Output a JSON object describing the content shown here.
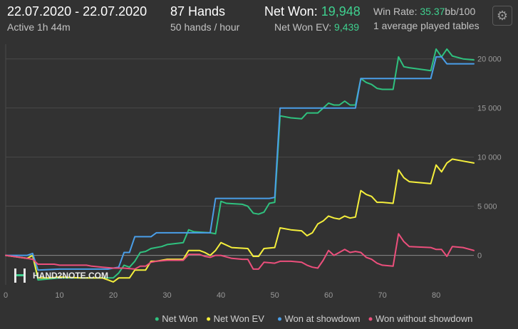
{
  "header": {
    "date_range": "22.07.2020 - 22.07.2020",
    "active": "Active 1h 44m",
    "hands": "87 Hands",
    "hands_rate": "50 hands / hour",
    "net_won_label": "Net Won:",
    "net_won_value": "19,948",
    "net_won_ev_label": "Net Won  EV:",
    "net_won_ev_value": "9,439",
    "win_rate_label": "Win Rate:",
    "win_rate_value": "35.37",
    "win_rate_unit": "bb/100",
    "tables": "1 average played tables"
  },
  "watermark": {
    "text": "HAND2NOTE.COM"
  },
  "colors": {
    "background": "#323232",
    "grid": "#4a4a4a",
    "zero_line": "#8a8a8a",
    "accent_green": "#3fd08f"
  },
  "icons": {
    "settings": "gear-icon",
    "logo": "h2n-logo-icon"
  },
  "chart_data": {
    "type": "line",
    "xlim": [
      0,
      87
    ],
    "ylim": [
      -3000,
      21500
    ],
    "x_ticks": [
      0,
      10,
      20,
      30,
      40,
      50,
      60,
      70,
      80
    ],
    "y_ticks": [
      0,
      5000,
      10000,
      15000,
      20000
    ],
    "y_tick_labels": [
      "0",
      "5 000",
      "10 000",
      "15 000",
      "20 000"
    ],
    "y_axis_position": "right",
    "grid": true,
    "legend_position": "bottom-right",
    "series": [
      {
        "name": "Net Won",
        "color": "#2fc27f",
        "points": [
          [
            0,
            0
          ],
          [
            4,
            -300
          ],
          [
            5,
            0
          ],
          [
            6,
            -2500
          ],
          [
            10,
            -2300
          ],
          [
            20,
            -2300
          ],
          [
            21,
            -1800
          ],
          [
            22,
            -1000
          ],
          [
            23,
            -1200
          ],
          [
            24,
            -600
          ],
          [
            25,
            300
          ],
          [
            26,
            400
          ],
          [
            27,
            700
          ],
          [
            29,
            900
          ],
          [
            30,
            1100
          ],
          [
            33,
            1300
          ],
          [
            34,
            2600
          ],
          [
            35,
            2400
          ],
          [
            38,
            2300
          ],
          [
            39,
            2200
          ],
          [
            40,
            5500
          ],
          [
            41,
            5300
          ],
          [
            44,
            5200
          ],
          [
            45,
            5000
          ],
          [
            46,
            4300
          ],
          [
            47,
            4200
          ],
          [
            48,
            4400
          ],
          [
            49,
            5300
          ],
          [
            50,
            5400
          ],
          [
            51,
            14200
          ],
          [
            53,
            14000
          ],
          [
            55,
            13900
          ],
          [
            56,
            14500
          ],
          [
            58,
            14500
          ],
          [
            59,
            15000
          ],
          [
            60,
            15500
          ],
          [
            61,
            15300
          ],
          [
            62,
            15300
          ],
          [
            63,
            15700
          ],
          [
            64,
            15300
          ],
          [
            65,
            15300
          ],
          [
            66,
            18000
          ],
          [
            67,
            17600
          ],
          [
            68,
            17400
          ],
          [
            69,
            17000
          ],
          [
            70,
            16900
          ],
          [
            72,
            16900
          ],
          [
            73,
            20200
          ],
          [
            74,
            19200
          ],
          [
            75,
            19100
          ],
          [
            79,
            18800
          ],
          [
            80,
            21000
          ],
          [
            81,
            20200
          ],
          [
            82,
            21000
          ],
          [
            83,
            20300
          ],
          [
            85,
            20000
          ],
          [
            87,
            19900
          ]
        ]
      },
      {
        "name": "Net Won  EV",
        "color": "#f5ef3c",
        "points": [
          [
            0,
            0
          ],
          [
            4,
            -300
          ],
          [
            5,
            0
          ],
          [
            6,
            -2300
          ],
          [
            8,
            -2300
          ],
          [
            10,
            -2200
          ],
          [
            14,
            -2300
          ],
          [
            18,
            -2300
          ],
          [
            19,
            -2500
          ],
          [
            20,
            -2700
          ],
          [
            21,
            -2300
          ],
          [
            23,
            -2300
          ],
          [
            24,
            -1500
          ],
          [
            26,
            -1500
          ],
          [
            27,
            -600
          ],
          [
            28,
            -600
          ],
          [
            30,
            -400
          ],
          [
            33,
            -400
          ],
          [
            34,
            500
          ],
          [
            36,
            500
          ],
          [
            37,
            300
          ],
          [
            38,
            0
          ],
          [
            39,
            500
          ],
          [
            40,
            1300
          ],
          [
            42,
            800
          ],
          [
            45,
            700
          ],
          [
            46,
            -100
          ],
          [
            47,
            -100
          ],
          [
            48,
            700
          ],
          [
            50,
            800
          ],
          [
            51,
            2800
          ],
          [
            53,
            2600
          ],
          [
            55,
            2500
          ],
          [
            56,
            2000
          ],
          [
            57,
            2300
          ],
          [
            58,
            3200
          ],
          [
            59,
            3500
          ],
          [
            60,
            4000
          ],
          [
            61,
            3800
          ],
          [
            62,
            3700
          ],
          [
            63,
            4000
          ],
          [
            64,
            3800
          ],
          [
            65,
            3900
          ],
          [
            66,
            6600
          ],
          [
            67,
            6200
          ],
          [
            68,
            6000
          ],
          [
            69,
            5400
          ],
          [
            70,
            5400
          ],
          [
            72,
            5300
          ],
          [
            73,
            8700
          ],
          [
            74,
            7900
          ],
          [
            75,
            7500
          ],
          [
            79,
            7300
          ],
          [
            80,
            9200
          ],
          [
            81,
            8500
          ],
          [
            82,
            9400
          ],
          [
            83,
            9800
          ],
          [
            85,
            9600
          ],
          [
            87,
            9400
          ]
        ]
      },
      {
        "name": "Won at showdown",
        "color": "#4a9ee8",
        "points": [
          [
            0,
            0
          ],
          [
            4,
            0
          ],
          [
            5,
            200
          ],
          [
            6,
            -1500
          ],
          [
            10,
            -1400
          ],
          [
            19,
            -1400
          ],
          [
            20,
            -1300
          ],
          [
            21,
            -1200
          ],
          [
            22,
            300
          ],
          [
            23,
            300
          ],
          [
            24,
            1900
          ],
          [
            27,
            1900
          ],
          [
            28,
            2300
          ],
          [
            38,
            2300
          ],
          [
            39,
            5800
          ],
          [
            49,
            5800
          ],
          [
            50,
            5900
          ],
          [
            51,
            15000
          ],
          [
            65,
            15000
          ],
          [
            66,
            18000
          ],
          [
            79,
            18000
          ],
          [
            80,
            20200
          ],
          [
            81,
            20200
          ],
          [
            82,
            19500
          ],
          [
            87,
            19500
          ]
        ]
      },
      {
        "name": "Won without showdown",
        "color": "#ec4f7c",
        "points": [
          [
            0,
            0
          ],
          [
            4,
            -300
          ],
          [
            5,
            -400
          ],
          [
            6,
            -900
          ],
          [
            9,
            -900
          ],
          [
            10,
            -1000
          ],
          [
            15,
            -1000
          ],
          [
            16,
            -1100
          ],
          [
            18,
            -1200
          ],
          [
            20,
            -1300
          ],
          [
            21,
            -1300
          ],
          [
            22,
            -1300
          ],
          [
            24,
            -1400
          ],
          [
            25,
            -1100
          ],
          [
            26,
            -1100
          ],
          [
            27,
            -700
          ],
          [
            28,
            -600
          ],
          [
            30,
            -500
          ],
          [
            33,
            -500
          ],
          [
            34,
            100
          ],
          [
            36,
            100
          ],
          [
            37,
            -100
          ],
          [
            38,
            -200
          ],
          [
            39,
            0
          ],
          [
            40,
            0
          ],
          [
            42,
            -300
          ],
          [
            44,
            -400
          ],
          [
            45,
            -400
          ],
          [
            46,
            -1400
          ],
          [
            47,
            -1400
          ],
          [
            48,
            -700
          ],
          [
            50,
            -800
          ],
          [
            51,
            -600
          ],
          [
            53,
            -600
          ],
          [
            55,
            -700
          ],
          [
            56,
            -1000
          ],
          [
            57,
            -1200
          ],
          [
            58,
            -1300
          ],
          [
            59,
            -500
          ],
          [
            60,
            500
          ],
          [
            61,
            0
          ],
          [
            62,
            300
          ],
          [
            63,
            600
          ],
          [
            64,
            300
          ],
          [
            65,
            400
          ],
          [
            66,
            300
          ],
          [
            67,
            -200
          ],
          [
            68,
            -400
          ],
          [
            69,
            -800
          ],
          [
            70,
            -1000
          ],
          [
            72,
            -1100
          ],
          [
            73,
            2200
          ],
          [
            74,
            1400
          ],
          [
            75,
            900
          ],
          [
            79,
            800
          ],
          [
            80,
            600
          ],
          [
            81,
            600
          ],
          [
            82,
            -100
          ],
          [
            83,
            900
          ],
          [
            85,
            800
          ],
          [
            87,
            500
          ]
        ]
      }
    ]
  }
}
